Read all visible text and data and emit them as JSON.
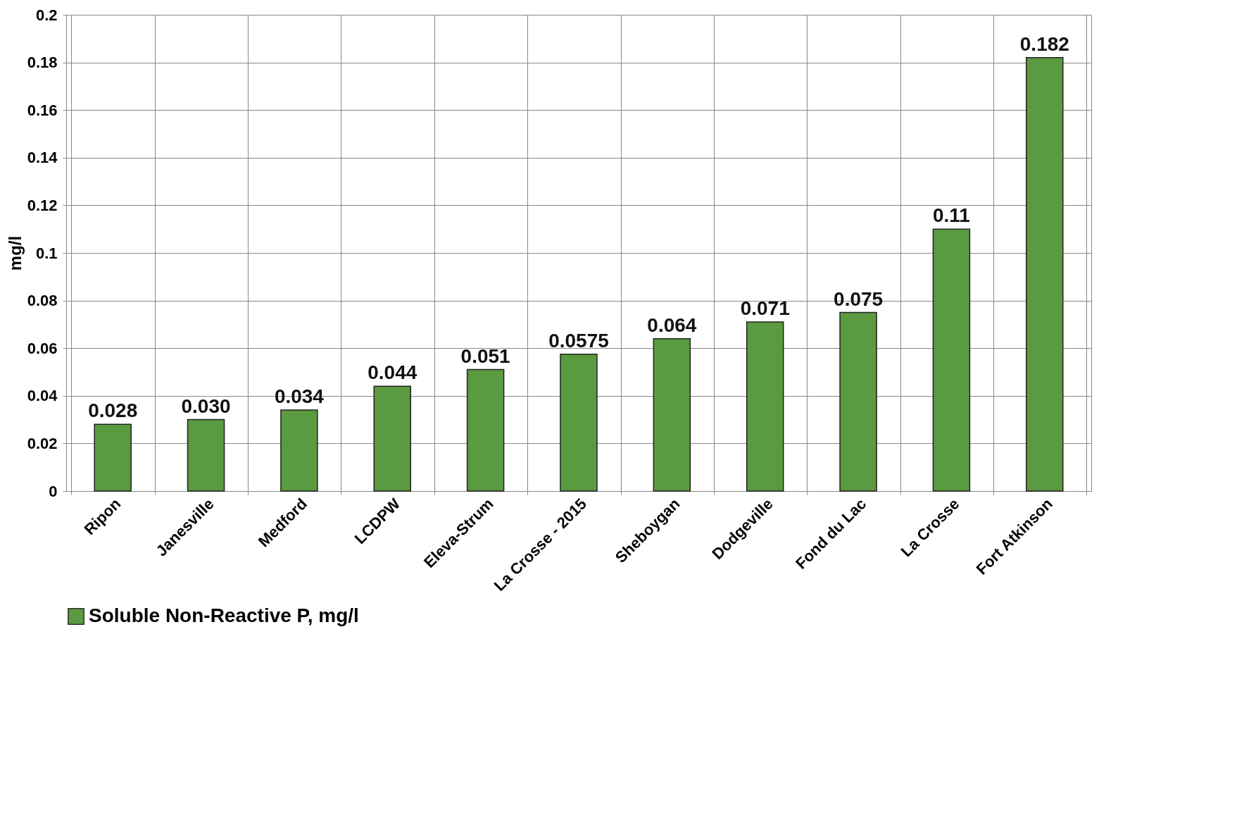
{
  "chart_data": {
    "type": "bar",
    "ylabel": "mg/l",
    "categories": [
      "Ripon",
      "Janesville",
      "Medford",
      "LCDPW",
      "Eleva-Strum",
      "La Crosse - 2015",
      "Sheboygan",
      "Dodgeville",
      "Fond du Lac",
      "La Crosse",
      "Fort Atkinson"
    ],
    "series": [
      {
        "name": "Soluble Non-Reactive P, mg/l",
        "color": "#5a9a40",
        "values": [
          0.028,
          0.03,
          0.034,
          0.044,
          0.051,
          0.0575,
          0.064,
          0.071,
          0.075,
          0.11,
          0.182
        ],
        "value_labels": [
          "0.028",
          "0.030",
          "0.034",
          "0.044",
          "0.051",
          "0.0575",
          "0.064",
          "0.071",
          "0.075",
          "0.11",
          "0.182"
        ]
      }
    ],
    "ylim": [
      0,
      0.2
    ],
    "yticks": [
      0,
      0.02,
      0.04,
      0.06,
      0.08,
      0.1,
      0.12,
      0.14,
      0.16,
      0.18,
      0.2
    ],
    "grid": true,
    "legend": "bottom"
  }
}
